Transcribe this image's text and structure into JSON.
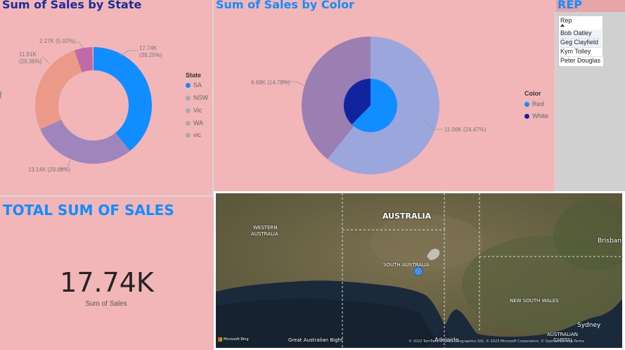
{
  "state_chart": {
    "title": "Sum of Sales by State",
    "legend_title": "State",
    "items": [
      {
        "label": "SA",
        "color": "#118dff"
      },
      {
        "label": "NSW",
        "color": "#aaaaaa"
      },
      {
        "label": "Vic",
        "color": "#aaaaaa"
      },
      {
        "label": "WA",
        "color": "#aaaaaa"
      },
      {
        "label": "vic",
        "color": "#aaaaaa"
      }
    ],
    "data_labels": [
      {
        "line1": "17.74K",
        "line2": "(39.25%)"
      },
      {
        "line1": "13.14K (29.08%)",
        "line2": ""
      },
      {
        "line1": "11.91K",
        "line2": "(26.36%)"
      },
      {
        "line1": "2.27K (5.02%)",
        "line2": ""
      }
    ]
  },
  "color_chart": {
    "title": "Sum of Sales by Color",
    "legend_title": "Color",
    "items": [
      {
        "label": "Red",
        "color": "#118dff"
      },
      {
        "label": "White",
        "color": "#12239e"
      }
    ],
    "data_labels": [
      {
        "text": "11.06K (24.47%)"
      },
      {
        "text": "6.68K (14.78%)"
      }
    ]
  },
  "rep_slicer": {
    "title": "REP",
    "header": "Rep",
    "items": [
      "Bob Oatley",
      "Geg Clayfield",
      "Kym Tolley",
      "Peter Douglas"
    ]
  },
  "card": {
    "title": "TOTAL SUM OF SALES",
    "value": "17.74K",
    "caption": "Sum of Sales"
  },
  "map": {
    "labels": {
      "australia": "AUSTRALIA",
      "western_australia_1": "WESTERN",
      "western_australia_2": "AUSTRALIA",
      "south_australia": "SOUTH AUSTRALIA",
      "new_south_wales": "NEW SOUTH WALES",
      "great_australian_bight": "Great Australian Bight",
      "adelaide": "Adelaide",
      "sydney": "Sydney",
      "brisbane": "Brisban",
      "act_1": "AUSTRALIAN",
      "act_2": "CAPITAL",
      "bing": "Microsoft Bing",
      "copyright": "© 2022 TomTom, © 2022 Geographics SIO, © 2023 Microsoft Corporation, © OpenStreetMap Terms"
    }
  },
  "chart_data": [
    {
      "type": "pie",
      "title": "Sum of Sales by State",
      "categories": [
        "SA",
        "NSW",
        "Vic",
        "WA",
        "vic"
      ],
      "values": [
        17.74,
        13.14,
        11.91,
        2.27,
        0
      ],
      "percent": [
        39.25,
        29.08,
        26.36,
        5.02,
        0
      ],
      "colors": [
        "#118dff",
        "#9e86bd",
        "#eb9a8a",
        "#c06aa8",
        "#aaaaaa"
      ],
      "legend": "right"
    },
    {
      "type": "pie",
      "title": "Sum of Sales by Color",
      "categories": [
        "Red",
        "White"
      ],
      "inner_values": [
        11.06,
        6.68
      ],
      "inner_percent": [
        24.47,
        14.78
      ],
      "inner_colors": [
        "#118dff",
        "#12239e"
      ],
      "outer_percent": [
        60.75,
        39.25
      ],
      "outer_colors": [
        "#9ba7dc",
        "#9b7eb2"
      ],
      "legend": "right"
    }
  ]
}
